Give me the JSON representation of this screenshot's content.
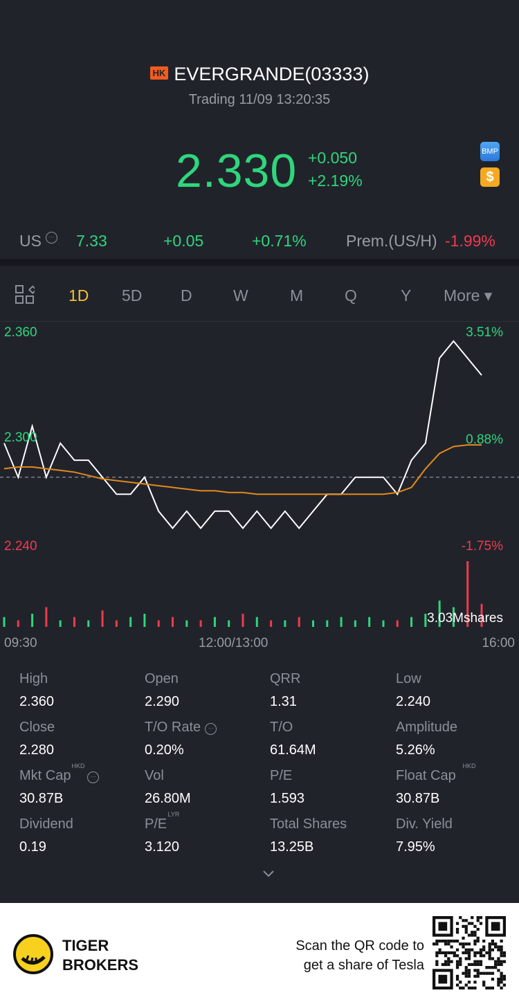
{
  "header": {
    "market_badge": "HK",
    "title": "EVERGRANDE(03333)",
    "status": "Trading 11/09 13:20:35",
    "price": "2.330",
    "change": "+0.050",
    "change_pct": "+2.19%",
    "badge_bmp": "BMP",
    "badge_dollar": "$"
  },
  "us_row": {
    "label": "US",
    "price": "7.33",
    "change": "+0.05",
    "change_pct": "+0.71%",
    "prem_label": "Prem.(US/H)",
    "prem_value": "-1.99%"
  },
  "tabs": [
    {
      "label": "1D"
    },
    {
      "label": "5D"
    },
    {
      "label": "D"
    },
    {
      "label": "W"
    },
    {
      "label": "M"
    },
    {
      "label": "Q"
    },
    {
      "label": "Y"
    },
    {
      "label": "More ▾"
    }
  ],
  "chart_data": {
    "type": "line",
    "y_left_ticks": [
      "2.360",
      "2.300",
      "2.240"
    ],
    "y_right_ticks": [
      "3.51%",
      "0.88%",
      "-1.75%"
    ],
    "x_ticks": [
      "09:30",
      "12:00/13:00",
      "16:00"
    ],
    "volume_label": "3.03Mshares",
    "prev_close": 2.28,
    "ylim": [
      2.24,
      2.36
    ],
    "series": [
      {
        "values": [
          2.3,
          2.28,
          2.31,
          2.28,
          2.3,
          2.29,
          2.29,
          2.28,
          2.27,
          2.27,
          2.28,
          2.26,
          2.25,
          2.26,
          2.25,
          2.26,
          2.26,
          2.25,
          2.26,
          2.25,
          2.26,
          2.25,
          2.26,
          2.27,
          2.27,
          2.28,
          2.28,
          2.28,
          2.27,
          2.29,
          2.3,
          2.35,
          2.36,
          2.35,
          2.34
        ]
      },
      {
        "values": [
          2.285,
          2.286,
          2.286,
          2.285,
          2.284,
          2.283,
          2.281,
          2.279,
          2.278,
          2.277,
          2.276,
          2.275,
          2.274,
          2.273,
          2.272,
          2.272,
          2.271,
          2.271,
          2.27,
          2.27,
          2.27,
          2.27,
          2.27,
          2.27,
          2.27,
          2.27,
          2.27,
          2.27,
          2.271,
          2.274,
          2.285,
          2.294,
          2.298,
          2.299,
          2.299
        ]
      }
    ],
    "volume": [
      3,
      2,
      4,
      6,
      2,
      3,
      2,
      5,
      2,
      3,
      4,
      2,
      3,
      2,
      2,
      3,
      2,
      4,
      3,
      2,
      2,
      3,
      2,
      2,
      3,
      2,
      3,
      2,
      2,
      3,
      4,
      8,
      6,
      20,
      7
    ]
  },
  "stats": [
    {
      "label": "High",
      "value": "2.360"
    },
    {
      "label": "Open",
      "value": "2.290"
    },
    {
      "label": "QRR",
      "value": "1.31"
    },
    {
      "label": "Low",
      "value": "2.240"
    },
    {
      "label": "Close",
      "value": "2.280"
    },
    {
      "label": "T/O Rate",
      "value": "0.20%"
    },
    {
      "label": "T/O",
      "value": "61.64M"
    },
    {
      "label": "Amplitude",
      "value": "5.26%"
    },
    {
      "label": "Mkt Cap",
      "value": "30.87B",
      "sup": "HKD"
    },
    {
      "label": "Vol",
      "value": "26.80M"
    },
    {
      "label": "P/E",
      "value": "1.593"
    },
    {
      "label": "Float Cap",
      "value": "30.87B",
      "sup": "HKD"
    },
    {
      "label": "Dividend",
      "value": "0.19"
    },
    {
      "label": "P/E",
      "value": "3.120",
      "sup": "LYR"
    },
    {
      "label": "Total Shares",
      "value": "13.25B"
    },
    {
      "label": "Div. Yield",
      "value": "7.95%"
    }
  ],
  "footer": {
    "brand_line1": "TIGER",
    "brand_line2": "BROKERS",
    "scan_line1": "Scan the QR code to",
    "scan_line2": "get a share of Tesla"
  },
  "colors": {
    "up": "#2fd67c",
    "down": "#ef3b4c",
    "accent": "#f2c230",
    "avg_line": "#e38a1a"
  }
}
